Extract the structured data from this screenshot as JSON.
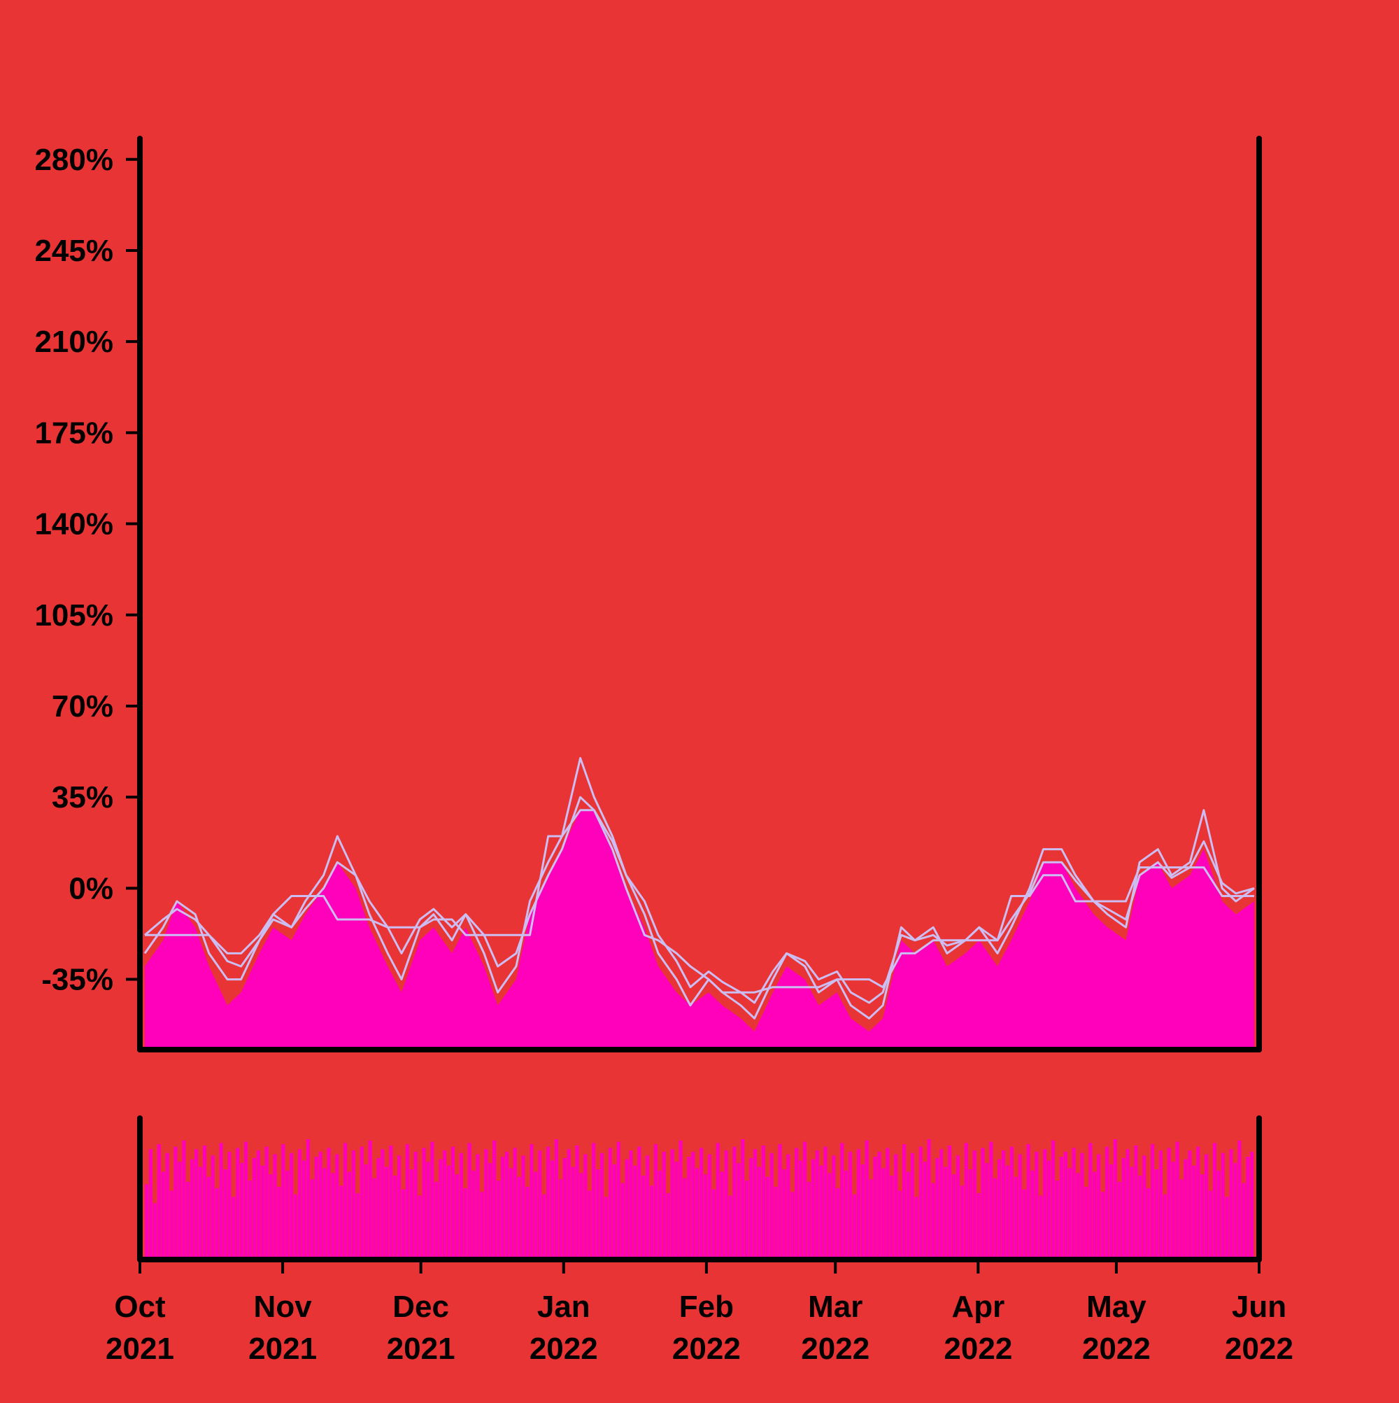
{
  "colors": {
    "background": "#E83434",
    "area_fill": "#FF00BB",
    "line": "#CCBDF3",
    "axis": "#000000"
  },
  "chart_data": {
    "type": "area",
    "title": "",
    "xlabel": "",
    "ylabel": "",
    "x_range": [
      "2021-10-01",
      "2022-05-31"
    ],
    "ylim": [
      -62,
      288
    ],
    "y_ticks": [
      {
        "value": -35,
        "label": "-35%"
      },
      {
        "value": 0,
        "label": "0%"
      },
      {
        "value": 35,
        "label": "35%"
      },
      {
        "value": 70,
        "label": "70%"
      },
      {
        "value": 105,
        "label": "105%"
      },
      {
        "value": 140,
        "label": "140%"
      },
      {
        "value": 175,
        "label": "175%"
      },
      {
        "value": 210,
        "label": "210%"
      },
      {
        "value": 245,
        "label": "245%"
      },
      {
        "value": 280,
        "label": "280%"
      }
    ],
    "x_ticks": [
      {
        "date": "2021-10-01",
        "month": "Oct",
        "year": "2021"
      },
      {
        "date": "2021-11-01",
        "month": "Nov",
        "year": "2021"
      },
      {
        "date": "2021-12-01",
        "month": "Dec",
        "year": "2021"
      },
      {
        "date": "2022-01-01",
        "month": "Jan",
        "year": "2022"
      },
      {
        "date": "2022-02-01",
        "month": "Feb",
        "year": "2022"
      },
      {
        "date": "2022-03-01",
        "month": "Mar",
        "year": "2022"
      },
      {
        "date": "2022-04-01",
        "month": "Apr",
        "year": "2022"
      },
      {
        "date": "2022-05-01",
        "month": "May",
        "year": "2022"
      },
      {
        "date": "2022-06-01",
        "month": "Jun",
        "year": "2022"
      }
    ],
    "grid": false,
    "legend": "none",
    "series": [
      {
        "kind": "area",
        "x": [
          "2021-10-01",
          "2021-10-05",
          "2021-10-08",
          "2021-10-12",
          "2021-10-15",
          "2021-10-19",
          "2021-10-22",
          "2021-10-26",
          "2021-10-29",
          "2021-11-02",
          "2021-11-05",
          "2021-11-09",
          "2021-11-12",
          "2021-11-16",
          "2021-11-19",
          "2021-11-23",
          "2021-11-26",
          "2021-11-30",
          "2021-12-03",
          "2021-12-07",
          "2021-12-10",
          "2021-12-14",
          "2021-12-17",
          "2021-12-21",
          "2021-12-24",
          "2021-12-28",
          "2021-12-31",
          "2022-01-04",
          "2022-01-07",
          "2022-01-11",
          "2022-01-14",
          "2022-01-18",
          "2022-01-21",
          "2022-01-25",
          "2022-01-28",
          "2022-02-01",
          "2022-02-04",
          "2022-02-08",
          "2022-02-11",
          "2022-02-15",
          "2022-02-18",
          "2022-02-22",
          "2022-02-25",
          "2022-03-01",
          "2022-03-04",
          "2022-03-08",
          "2022-03-11",
          "2022-03-15",
          "2022-03-18",
          "2022-03-22",
          "2022-03-25",
          "2022-03-29",
          "2022-04-01",
          "2022-04-05",
          "2022-04-08",
          "2022-04-12",
          "2022-04-15",
          "2022-04-19",
          "2022-04-22",
          "2022-04-26",
          "2022-04-29",
          "2022-05-03",
          "2022-05-06",
          "2022-05-10",
          "2022-05-13",
          "2022-05-17",
          "2022-05-20",
          "2022-05-24",
          "2022-05-27",
          "2022-05-31"
        ],
        "values": [
          -30,
          -20,
          -5,
          -15,
          -30,
          -45,
          -40,
          -25,
          -15,
          -20,
          -10,
          0,
          10,
          0,
          -15,
          -30,
          -40,
          -20,
          -15,
          -25,
          -15,
          -30,
          -45,
          -35,
          -10,
          5,
          15,
          30,
          30,
          15,
          0,
          -15,
          -30,
          -40,
          -45,
          -40,
          -45,
          -50,
          -55,
          -40,
          -30,
          -35,
          -45,
          -40,
          -50,
          -55,
          -50,
          -20,
          -25,
          -20,
          -30,
          -25,
          -20,
          -30,
          -20,
          -5,
          10,
          10,
          0,
          -10,
          -15,
          -20,
          5,
          10,
          0,
          5,
          15,
          -5,
          -10,
          -5
        ]
      },
      {
        "kind": "line",
        "x": [
          "2021-10-01",
          "2021-10-05",
          "2021-10-08",
          "2021-10-12",
          "2021-10-15",
          "2021-10-19",
          "2021-10-22",
          "2021-10-26",
          "2021-10-29",
          "2021-11-02",
          "2021-11-05",
          "2021-11-09",
          "2021-11-12",
          "2021-11-16",
          "2021-11-19",
          "2021-11-23",
          "2021-11-26",
          "2021-11-30",
          "2021-12-03",
          "2021-12-07",
          "2021-12-10",
          "2021-12-14",
          "2021-12-17",
          "2021-12-21",
          "2021-12-24",
          "2021-12-28",
          "2021-12-31",
          "2022-01-04",
          "2022-01-07",
          "2022-01-11",
          "2022-01-14",
          "2022-01-18",
          "2022-01-21",
          "2022-01-25",
          "2022-01-28",
          "2022-02-01",
          "2022-02-04",
          "2022-02-08",
          "2022-02-11",
          "2022-02-15",
          "2022-02-18",
          "2022-02-22",
          "2022-02-25",
          "2022-03-01",
          "2022-03-04",
          "2022-03-08",
          "2022-03-11",
          "2022-03-15",
          "2022-03-18",
          "2022-03-22",
          "2022-03-25",
          "2022-03-29",
          "2022-04-01",
          "2022-04-05",
          "2022-04-08",
          "2022-04-12",
          "2022-04-15",
          "2022-04-19",
          "2022-04-22",
          "2022-04-26",
          "2022-04-29",
          "2022-05-03",
          "2022-05-06",
          "2022-05-10",
          "2022-05-13",
          "2022-05-17",
          "2022-05-20",
          "2022-05-24",
          "2022-05-27",
          "2022-05-31"
        ],
        "values": [
          -25,
          -15,
          -5,
          -10,
          -25,
          -35,
          -35,
          -20,
          -10,
          -15,
          -5,
          5,
          20,
          5,
          -10,
          -25,
          -35,
          -15,
          -10,
          -20,
          -10,
          -25,
          -40,
          -30,
          -5,
          10,
          20,
          50,
          35,
          20,
          5,
          -10,
          -25,
          -35,
          -45,
          -35,
          -40,
          -45,
          -50,
          -35,
          -25,
          -30,
          -40,
          -35,
          -45,
          -50,
          -45,
          -15,
          -20,
          -15,
          -25,
          -20,
          -15,
          -25,
          -15,
          0,
          15,
          15,
          5,
          -5,
          -10,
          -15,
          10,
          15,
          5,
          10,
          30,
          0,
          -5,
          0
        ]
      },
      {
        "kind": "line",
        "x": [
          "2021-10-01",
          "2021-10-05",
          "2021-10-08",
          "2021-10-12",
          "2021-10-15",
          "2021-10-19",
          "2021-10-22",
          "2021-10-26",
          "2021-10-29",
          "2021-11-02",
          "2021-11-05",
          "2021-11-09",
          "2021-11-12",
          "2021-11-16",
          "2021-11-19",
          "2021-11-23",
          "2021-11-26",
          "2021-11-30",
          "2021-12-03",
          "2021-12-07",
          "2021-12-10",
          "2021-12-14",
          "2021-12-17",
          "2021-12-21",
          "2021-12-24",
          "2021-12-28",
          "2021-12-31",
          "2022-01-04",
          "2022-01-07",
          "2022-01-11",
          "2022-01-14",
          "2022-01-18",
          "2022-01-21",
          "2022-01-25",
          "2022-01-28",
          "2022-02-01",
          "2022-02-04",
          "2022-02-08",
          "2022-02-11",
          "2022-02-15",
          "2022-02-18",
          "2022-02-22",
          "2022-02-25",
          "2022-03-01",
          "2022-03-04",
          "2022-03-08",
          "2022-03-11",
          "2022-03-15",
          "2022-03-18",
          "2022-03-22",
          "2022-03-25",
          "2022-03-29",
          "2022-04-01",
          "2022-04-05",
          "2022-04-08",
          "2022-04-12",
          "2022-04-15",
          "2022-04-19",
          "2022-04-22",
          "2022-04-26",
          "2022-04-29",
          "2022-05-03",
          "2022-05-06",
          "2022-05-10",
          "2022-05-13",
          "2022-05-17",
          "2022-05-20",
          "2022-05-24",
          "2022-05-27",
          "2022-05-31"
        ],
        "values": [
          -18,
          -12,
          -8,
          -12,
          -18,
          -28,
          -30,
          -20,
          -12,
          -15,
          -8,
          0,
          10,
          5,
          -5,
          -15,
          -25,
          -12,
          -8,
          -15,
          -10,
          -18,
          -30,
          -25,
          -10,
          5,
          15,
          35,
          30,
          18,
          5,
          -5,
          -18,
          -28,
          -38,
          -32,
          -36,
          -40,
          -44,
          -32,
          -25,
          -28,
          -35,
          -32,
          -40,
          -44,
          -40,
          -18,
          -20,
          -18,
          -22,
          -20,
          -15,
          -20,
          -12,
          -2,
          10,
          10,
          3,
          -5,
          -8,
          -12,
          5,
          10,
          4,
          8,
          18,
          2,
          -2,
          0
        ]
      },
      {
        "kind": "line",
        "x": [
          "2021-10-01",
          "2021-10-05",
          "2021-10-08",
          "2021-10-12",
          "2021-10-15",
          "2021-10-19",
          "2021-10-22",
          "2021-10-26",
          "2021-10-29",
          "2021-11-02",
          "2021-11-05",
          "2021-11-09",
          "2021-11-12",
          "2021-11-16",
          "2021-11-19",
          "2021-11-23",
          "2021-11-26",
          "2021-11-30",
          "2021-12-03",
          "2021-12-07",
          "2021-12-10",
          "2021-12-14",
          "2021-12-17",
          "2021-12-21",
          "2021-12-24",
          "2021-12-28",
          "2021-12-31",
          "2022-01-04",
          "2022-01-07",
          "2022-01-11",
          "2022-01-14",
          "2022-01-18",
          "2022-01-21",
          "2022-01-25",
          "2022-01-28",
          "2022-02-01",
          "2022-02-04",
          "2022-02-08",
          "2022-02-11",
          "2022-02-15",
          "2022-02-18",
          "2022-02-22",
          "2022-02-25",
          "2022-03-01",
          "2022-03-04",
          "2022-03-08",
          "2022-03-11",
          "2022-03-15",
          "2022-03-18",
          "2022-03-22",
          "2022-03-25",
          "2022-03-29",
          "2022-04-01",
          "2022-04-05",
          "2022-04-08",
          "2022-04-12",
          "2022-04-15",
          "2022-04-19",
          "2022-04-22",
          "2022-04-26",
          "2022-04-29",
          "2022-05-03",
          "2022-05-06",
          "2022-05-10",
          "2022-05-13",
          "2022-05-17",
          "2022-05-20",
          "2022-05-24",
          "2022-05-27",
          "2022-05-31"
        ],
        "values": [
          -18,
          -18,
          -18,
          -18,
          -18,
          -25,
          -25,
          -18,
          -10,
          -3,
          -3,
          -3,
          -12,
          -12,
          -12,
          -15,
          -15,
          -15,
          -12,
          -12,
          -18,
          -18,
          -18,
          -18,
          -18,
          20,
          20,
          30,
          30,
          15,
          0,
          -18,
          -20,
          -25,
          -30,
          -35,
          -40,
          -40,
          -40,
          -38,
          -38,
          -38,
          -38,
          -35,
          -35,
          -35,
          -38,
          -25,
          -25,
          -20,
          -20,
          -20,
          -20,
          -20,
          -3,
          -3,
          5,
          5,
          -5,
          -5,
          -5,
          -5,
          8,
          8,
          8,
          8,
          8,
          -3,
          -3,
          -3
        ]
      },
      {
        "kind": "volume_bars",
        "x_range": [
          "2021-10-01",
          "2022-05-31"
        ],
        "values": [
          60,
          88,
          45,
          92,
          70,
          85,
          55,
          90,
          78,
          95,
          62,
          80,
          88,
          74,
          91,
          66,
          83,
          57,
          93,
          72,
          86,
          50,
          89,
          77,
          94,
          63,
          81,
          87,
          75,
          90,
          68,
          84,
          58,
          92,
          71,
          85,
          52,
          88,
          79,
          96,
          64,
          82,
          86,
          73,
          89,
          69,
          84,
          59,
          93,
          70,
          87,
          53,
          90,
          76,
          95,
          65,
          81,
          88,
          74,
          91,
          67,
          83,
          56,
          92,
          72,
          86,
          51,
          89,
          78,
          94,
          62,
          80,
          87,
          75,
          90,
          68,
          85,
          57,
          93,
          71,
          84,
          54,
          88,
          77,
          95,
          63,
          82,
          86,
          73,
          89,
          66,
          83,
          58,
          92,
          70,
          87,
          52,
          90,
          79,
          96,
          64,
          81,
          88,
          74,
          91,
          69,
          84,
          55,
          93,
          72,
          85,
          50,
          89,
          76,
          94,
          61,
          80,
          87,
          75,
          90,
          67,
          83,
          59,
          92,
          71,
          86,
          53,
          88,
          78,
          95,
          65,
          82,
          86,
          73,
          89,
          68,
          84,
          56,
          93,
          70,
          87,
          51,
          90,
          77,
          96,
          63,
          81,
          88,
          74,
          91,
          66,
          85,
          58,
          92,
          72,
          84,
          54,
          89,
          79,
          94,
          62,
          80,
          87,
          75,
          90,
          69,
          83,
          57,
          93,
          71,
          86,
          52,
          88,
          76,
          95,
          64,
          82,
          86,
          73,
          89,
          67,
          84,
          55,
          92,
          70,
          85,
          50,
          90,
          78,
          96,
          61,
          81,
          88,
          74,
          91,
          68,
          83,
          59,
          93,
          72,
          87,
          53,
          89,
          77,
          94,
          65,
          80,
          87,
          75,
          90,
          66,
          84,
          56,
          92,
          71,
          86,
          51,
          88,
          79,
          95,
          63,
          82,
          86,
          73,
          89,
          69,
          85,
          58,
          93,
          70,
          84,
          54,
          90,
          76,
          96,
          62,
          81,
          88,
          74,
          91,
          67,
          83,
          57,
          92,
          72,
          87,
          52,
          89,
          78,
          94,
          64,
          80,
          87,
          75,
          90,
          68,
          84,
          55,
          93,
          71,
          85,
          50,
          88,
          77,
          95,
          61,
          82,
          86
        ]
      }
    ]
  }
}
